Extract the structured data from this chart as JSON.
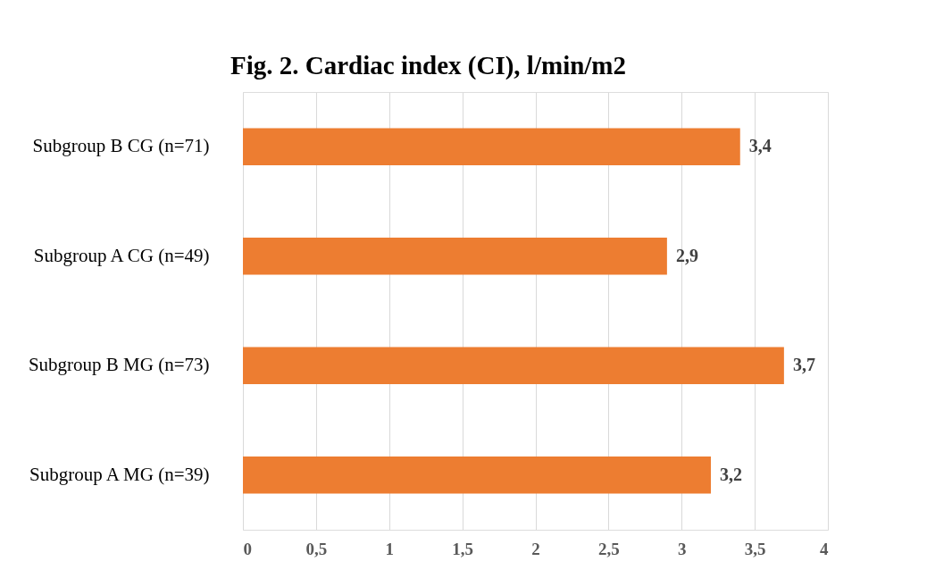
{
  "chart_data": {
    "type": "bar",
    "orientation": "horizontal",
    "title": "Fig. 2. Cardiac index (CI), l/min/m2",
    "categories": [
      "Subgroup B CG (n=71)",
      "Subgroup A CG (n=49)",
      "Subgroup B MG (n=73)",
      "Subgroup A MG (n=39)"
    ],
    "values": [
      3.4,
      2.9,
      3.7,
      3.2
    ],
    "value_labels": [
      "3,4",
      "2,9",
      "3,7",
      "3,2"
    ],
    "color": "#ed7d31",
    "xlim": [
      0,
      4
    ],
    "xticks": [
      0,
      {
        "value": 0.5,
        "label": "0,5"
      },
      1,
      {
        "value": 1.5,
        "label": "1,5"
      },
      2,
      {
        "value": 2.5,
        "label": "2,5"
      },
      3,
      {
        "value": 3.5,
        "label": "3,5"
      },
      4
    ],
    "grid": "x"
  }
}
